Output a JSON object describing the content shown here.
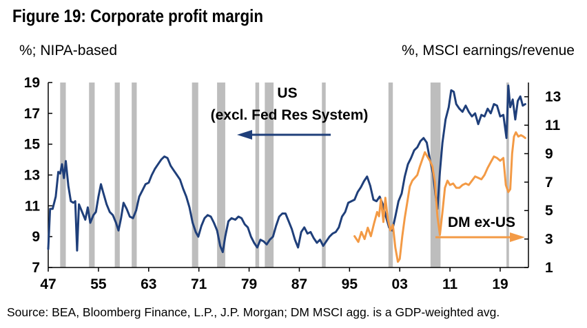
{
  "title": "Figure 19: Corporate profit margin",
  "left_unit": "%; NIPA-based",
  "right_unit": "%, MSCI earnings/revenue",
  "source": "Source: BEA, Bloomberg Finance, L.P., J.P. Morgan; DM MSCI agg. is a GDP-weighted avg.",
  "colors": {
    "us": "#1f3f7a",
    "dm": "#f39a45",
    "recession": "#bdbdbd"
  },
  "chart_data": {
    "type": "line",
    "x_ticks": [
      "47",
      "55",
      "63",
      "71",
      "79",
      "87",
      "95",
      "03",
      "11",
      "19"
    ],
    "y_left_ticks": [
      7,
      9,
      11,
      13,
      15,
      17,
      19
    ],
    "y_right_ticks": [
      1,
      3,
      5,
      7,
      9,
      11,
      13
    ],
    "ylim_left": [
      7,
      19
    ],
    "ylim_right": [
      1,
      14
    ],
    "xlim": [
      1947,
      2023.5
    ],
    "annotations": [
      {
        "text_lines": [
          "US",
          "(excl. Fed Res System)"
        ],
        "series": "US",
        "axis": "left"
      },
      {
        "text_lines": [
          "DM ex-US"
        ],
        "series": "DM ex-US",
        "axis": "right"
      }
    ],
    "recessions": [
      [
        1948.9,
        1949.8
      ],
      [
        1953.5,
        1954.4
      ],
      [
        1957.6,
        1958.4
      ],
      [
        1960.3,
        1961.1
      ],
      [
        1969.9,
        1970.9
      ],
      [
        1973.9,
        1975.2
      ],
      [
        1980.0,
        1980.6
      ],
      [
        1981.5,
        1982.9
      ],
      [
        1990.6,
        1991.2
      ],
      [
        2001.2,
        2001.9
      ],
      [
        2007.9,
        2009.5
      ],
      [
        2020.0,
        2020.4
      ]
    ],
    "series": [
      {
        "name": "US",
        "axis": "left",
        "points": [
          [
            1947.0,
            8.2
          ],
          [
            1947.3,
            10.8
          ],
          [
            1947.7,
            10.8
          ],
          [
            1948.2,
            11.6
          ],
          [
            1948.6,
            13.2
          ],
          [
            1948.9,
            13.1
          ],
          [
            1949.2,
            13.7
          ],
          [
            1949.5,
            12.8
          ],
          [
            1949.8,
            13.9
          ],
          [
            1950.2,
            12.3
          ],
          [
            1950.6,
            11.3
          ],
          [
            1951.0,
            11.2
          ],
          [
            1951.3,
            11.3
          ],
          [
            1951.6,
            8.1
          ],
          [
            1951.9,
            11.1
          ],
          [
            1952.4,
            10.6
          ],
          [
            1952.9,
            10.1
          ],
          [
            1953.3,
            10.9
          ],
          [
            1953.7,
            9.9
          ],
          [
            1954.2,
            10.4
          ],
          [
            1954.6,
            10.6
          ],
          [
            1955.0,
            11.6
          ],
          [
            1955.4,
            12.4
          ],
          [
            1955.8,
            11.8
          ],
          [
            1956.3,
            11.1
          ],
          [
            1956.8,
            10.6
          ],
          [
            1957.3,
            10.4
          ],
          [
            1957.8,
            9.9
          ],
          [
            1958.2,
            9.4
          ],
          [
            1958.6,
            10.2
          ],
          [
            1959.0,
            11.2
          ],
          [
            1959.5,
            10.8
          ],
          [
            1960.0,
            10.3
          ],
          [
            1960.5,
            10.2
          ],
          [
            1961.0,
            10.7
          ],
          [
            1961.5,
            11.6
          ],
          [
            1962.0,
            12.0
          ],
          [
            1962.5,
            12.4
          ],
          [
            1963.0,
            12.5
          ],
          [
            1963.5,
            13.0
          ],
          [
            1964.0,
            13.4
          ],
          [
            1964.5,
            13.7
          ],
          [
            1965.0,
            14.0
          ],
          [
            1965.5,
            14.2
          ],
          [
            1966.0,
            14.1
          ],
          [
            1966.5,
            13.6
          ],
          [
            1967.0,
            13.3
          ],
          [
            1967.5,
            13.0
          ],
          [
            1968.0,
            12.7
          ],
          [
            1968.5,
            12.1
          ],
          [
            1969.0,
            11.6
          ],
          [
            1969.5,
            10.9
          ],
          [
            1970.0,
            9.9
          ],
          [
            1970.5,
            9.3
          ],
          [
            1970.9,
            9.0
          ],
          [
            1971.4,
            9.7
          ],
          [
            1971.9,
            10.2
          ],
          [
            1972.4,
            10.4
          ],
          [
            1972.9,
            10.3
          ],
          [
            1973.4,
            9.9
          ],
          [
            1973.9,
            9.4
          ],
          [
            1974.4,
            8.4
          ],
          [
            1974.8,
            8.0
          ],
          [
            1975.2,
            9.0
          ],
          [
            1975.7,
            10.0
          ],
          [
            1976.2,
            10.2
          ],
          [
            1976.8,
            10.1
          ],
          [
            1977.3,
            10.3
          ],
          [
            1977.8,
            10.2
          ],
          [
            1978.3,
            9.8
          ],
          [
            1978.8,
            9.6
          ],
          [
            1979.3,
            9.0
          ],
          [
            1979.8,
            8.6
          ],
          [
            1980.3,
            8.3
          ],
          [
            1980.8,
            8.8
          ],
          [
            1981.3,
            8.7
          ],
          [
            1981.8,
            8.5
          ],
          [
            1982.3,
            8.8
          ],
          [
            1982.8,
            9.0
          ],
          [
            1983.3,
            9.7
          ],
          [
            1983.8,
            10.3
          ],
          [
            1984.3,
            10.5
          ],
          [
            1984.8,
            10.5
          ],
          [
            1985.3,
            10.0
          ],
          [
            1985.8,
            9.5
          ],
          [
            1986.3,
            8.8
          ],
          [
            1986.8,
            8.3
          ],
          [
            1987.3,
            9.3
          ],
          [
            1987.8,
            9.6
          ],
          [
            1988.3,
            9.2
          ],
          [
            1988.8,
            9.3
          ],
          [
            1989.3,
            8.9
          ],
          [
            1989.8,
            8.6
          ],
          [
            1990.3,
            8.8
          ],
          [
            1990.8,
            8.4
          ],
          [
            1991.3,
            8.7
          ],
          [
            1991.8,
            9.0
          ],
          [
            1992.3,
            9.2
          ],
          [
            1992.8,
            9.3
          ],
          [
            1993.3,
            9.6
          ],
          [
            1993.8,
            10.3
          ],
          [
            1994.3,
            10.6
          ],
          [
            1994.8,
            11.2
          ],
          [
            1995.3,
            11.3
          ],
          [
            1995.8,
            11.4
          ],
          [
            1996.3,
            11.9
          ],
          [
            1996.8,
            12.2
          ],
          [
            1997.3,
            12.6
          ],
          [
            1997.8,
            12.9
          ],
          [
            1998.3,
            12.3
          ],
          [
            1998.8,
            11.4
          ],
          [
            1999.3,
            11.3
          ],
          [
            1999.8,
            11.6
          ],
          [
            2000.3,
            11.1
          ],
          [
            2000.8,
            10.3
          ],
          [
            2001.3,
            9.6
          ],
          [
            2001.8,
            9.4
          ],
          [
            2002.3,
            10.3
          ],
          [
            2002.8,
            11.3
          ],
          [
            2003.3,
            11.8
          ],
          [
            2003.8,
            12.9
          ],
          [
            2004.3,
            13.7
          ],
          [
            2004.8,
            14.1
          ],
          [
            2005.3,
            14.6
          ],
          [
            2005.8,
            14.8
          ],
          [
            2006.3,
            15.2
          ],
          [
            2006.8,
            15.4
          ],
          [
            2007.3,
            15.1
          ],
          [
            2007.8,
            14.0
          ],
          [
            2008.3,
            13.1
          ],
          [
            2008.7,
            11.7
          ],
          [
            2009.0,
            10.8
          ],
          [
            2009.4,
            13.2
          ],
          [
            2009.8,
            15.1
          ],
          [
            2010.3,
            16.6
          ],
          [
            2010.8,
            17.4
          ],
          [
            2011.2,
            18.5
          ],
          [
            2011.6,
            18.4
          ],
          [
            2012.0,
            17.6
          ],
          [
            2012.5,
            17.3
          ],
          [
            2013.0,
            17.1
          ],
          [
            2013.5,
            17.5
          ],
          [
            2014.0,
            17.1
          ],
          [
            2014.5,
            16.8
          ],
          [
            2015.0,
            17.0
          ],
          [
            2015.5,
            16.3
          ],
          [
            2016.0,
            16.9
          ],
          [
            2016.5,
            16.8
          ],
          [
            2017.0,
            17.3
          ],
          [
            2017.5,
            17.0
          ],
          [
            2018.0,
            17.6
          ],
          [
            2018.5,
            17.5
          ],
          [
            2019.0,
            16.8
          ],
          [
            2019.5,
            16.9
          ],
          [
            2020.0,
            15.4
          ],
          [
            2020.3,
            18.8
          ],
          [
            2020.6,
            17.4
          ],
          [
            2021.0,
            17.9
          ],
          [
            2021.4,
            16.6
          ],
          [
            2021.8,
            17.8
          ],
          [
            2022.2,
            18.1
          ],
          [
            2022.6,
            17.5
          ],
          [
            2023.0,
            17.6
          ]
        ]
      },
      {
        "name": "DM ex-US",
        "axis": "right",
        "points": [
          [
            1995.8,
            3.2
          ],
          [
            1996.4,
            2.8
          ],
          [
            1996.9,
            3.5
          ],
          [
            1997.4,
            3.0
          ],
          [
            1997.9,
            3.8
          ],
          [
            1998.4,
            3.2
          ],
          [
            1998.9,
            4.1
          ],
          [
            1999.4,
            4.9
          ],
          [
            1999.7,
            4.6
          ],
          [
            2000.0,
            5.8
          ],
          [
            2000.4,
            4.2
          ],
          [
            2000.7,
            5.9
          ],
          [
            2001.1,
            4.4
          ],
          [
            2001.5,
            3.6
          ],
          [
            2001.9,
            4.0
          ],
          [
            2002.3,
            2.4
          ],
          [
            2002.7,
            1.4
          ],
          [
            2003.0,
            1.6
          ],
          [
            2003.4,
            3.2
          ],
          [
            2003.8,
            4.5
          ],
          [
            2004.2,
            5.6
          ],
          [
            2004.6,
            6.7
          ],
          [
            2005.0,
            7.1
          ],
          [
            2005.4,
            7.3
          ],
          [
            2005.8,
            7.5
          ],
          [
            2006.2,
            8.1
          ],
          [
            2006.6,
            8.6
          ],
          [
            2007.0,
            9.1
          ],
          [
            2007.4,
            8.8
          ],
          [
            2007.8,
            8.5
          ],
          [
            2008.2,
            8.1
          ],
          [
            2008.6,
            7.0
          ],
          [
            2009.0,
            4.6
          ],
          [
            2009.4,
            3.3
          ],
          [
            2009.8,
            4.9
          ],
          [
            2010.2,
            6.6
          ],
          [
            2010.6,
            7.1
          ],
          [
            2011.0,
            6.8
          ],
          [
            2011.5,
            6.9
          ],
          [
            2012.0,
            6.6
          ],
          [
            2012.5,
            6.6
          ],
          [
            2013.0,
            6.8
          ],
          [
            2013.5,
            6.9
          ],
          [
            2014.0,
            6.8
          ],
          [
            2014.5,
            7.1
          ],
          [
            2015.0,
            7.4
          ],
          [
            2015.5,
            7.3
          ],
          [
            2016.0,
            7.2
          ],
          [
            2016.5,
            7.5
          ],
          [
            2017.0,
            8.0
          ],
          [
            2017.5,
            8.4
          ],
          [
            2018.0,
            8.8
          ],
          [
            2018.5,
            8.7
          ],
          [
            2019.0,
            8.5
          ],
          [
            2019.5,
            8.7
          ],
          [
            2019.9,
            6.8
          ],
          [
            2020.3,
            6.3
          ],
          [
            2020.6,
            6.5
          ],
          [
            2020.9,
            9.0
          ],
          [
            2021.2,
            10.2
          ],
          [
            2021.5,
            10.5
          ],
          [
            2021.9,
            10.2
          ],
          [
            2022.3,
            10.3
          ],
          [
            2022.7,
            10.2
          ],
          [
            2023.0,
            10.1
          ]
        ]
      }
    ]
  }
}
